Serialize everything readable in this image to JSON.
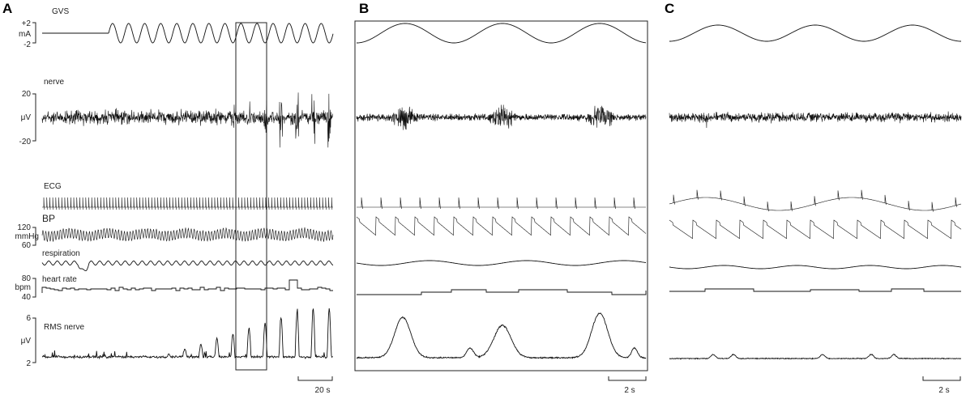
{
  "panels": {
    "a": "A",
    "b": "B",
    "c": "C"
  },
  "labels": {
    "gvs": "GVS",
    "nerve": "nerve",
    "ecg": "ECG",
    "bp": "BP",
    "respiration": "respiration",
    "heart_rate": "heart rate",
    "rms_nerve": "RMS nerve"
  },
  "axes": {
    "gvs": {
      "top": "+2",
      "unit": "mA",
      "bottom": "-2"
    },
    "nerve": {
      "top": "20",
      "unit": "μV",
      "bottom": "-20"
    },
    "bp": {
      "top": "120",
      "unit": "mmHg",
      "bottom": "60"
    },
    "hr": {
      "top": "80",
      "unit": "bpm",
      "bottom": "40"
    },
    "rms": {
      "top": "6",
      "unit": "μV",
      "bottom": "2"
    }
  },
  "scalebars": {
    "a": "20 s",
    "b": "2 s",
    "c": "2 s"
  },
  "colors": {
    "trace": "#111111"
  }
}
